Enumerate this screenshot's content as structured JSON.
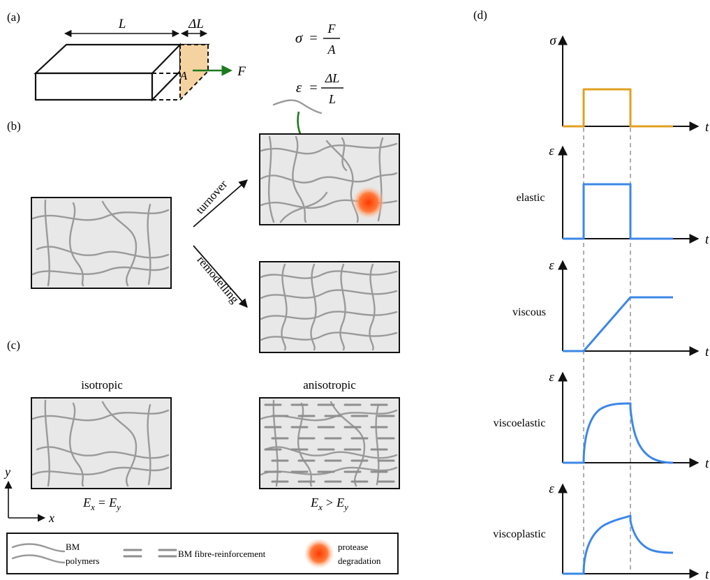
{
  "panels": {
    "a": "(a)",
    "b": "(b)",
    "c": "(c)",
    "d": "(d)"
  },
  "panel_a": {
    "length_label": "L",
    "delta_label": "ΔL",
    "area_label": "A",
    "force_label": "F",
    "stress_symbol": "σ",
    "stress_numerator": "F",
    "stress_denominator": "A",
    "strain_symbol": "ε",
    "strain_numerator": "ΔL",
    "strain_denominator": "L",
    "equals": "="
  },
  "panel_b": {
    "turnover_label": "turnover",
    "remodelling_label": "remodelling"
  },
  "panel_c": {
    "isotropic_label": "isotropic",
    "anisotropic_label": "anisotropic",
    "iso_relation": {
      "left": "E",
      "left_sub": "x",
      "op": "=",
      "right": "E",
      "right_sub": "y"
    },
    "aniso_relation": {
      "left": "E",
      "left_sub": "x",
      "op": ">",
      "right": "E",
      "right_sub": "y"
    },
    "axis_x": "x",
    "axis_y": "y"
  },
  "legend": {
    "polymers_line1": "BM",
    "polymers_line2": "polymers",
    "reinforcement": "BM fibre-reinforcement",
    "protease_line1": "protease",
    "protease_line2": "degradation"
  },
  "panel_d": {
    "time_label": "t",
    "stress_axis": "σ",
    "strain_axis": "ε",
    "stress_color": "#E0A020",
    "strain_color": "#3C87E8",
    "plots": [
      {
        "label": "",
        "axis": "σ"
      },
      {
        "label": "elastic",
        "axis": "ε"
      },
      {
        "label": "viscous",
        "axis": "ε"
      },
      {
        "label": "viscoelastic",
        "axis": "ε"
      },
      {
        "label": "viscoplastic",
        "axis": "ε"
      }
    ]
  },
  "colors": {
    "arrow_green": "#1F7A1F",
    "cross_section": "#F5D3A0",
    "matrix_fill": "#E8E8E8",
    "fibre": "#9A9A9A",
    "protease": "#FF6A2A"
  }
}
